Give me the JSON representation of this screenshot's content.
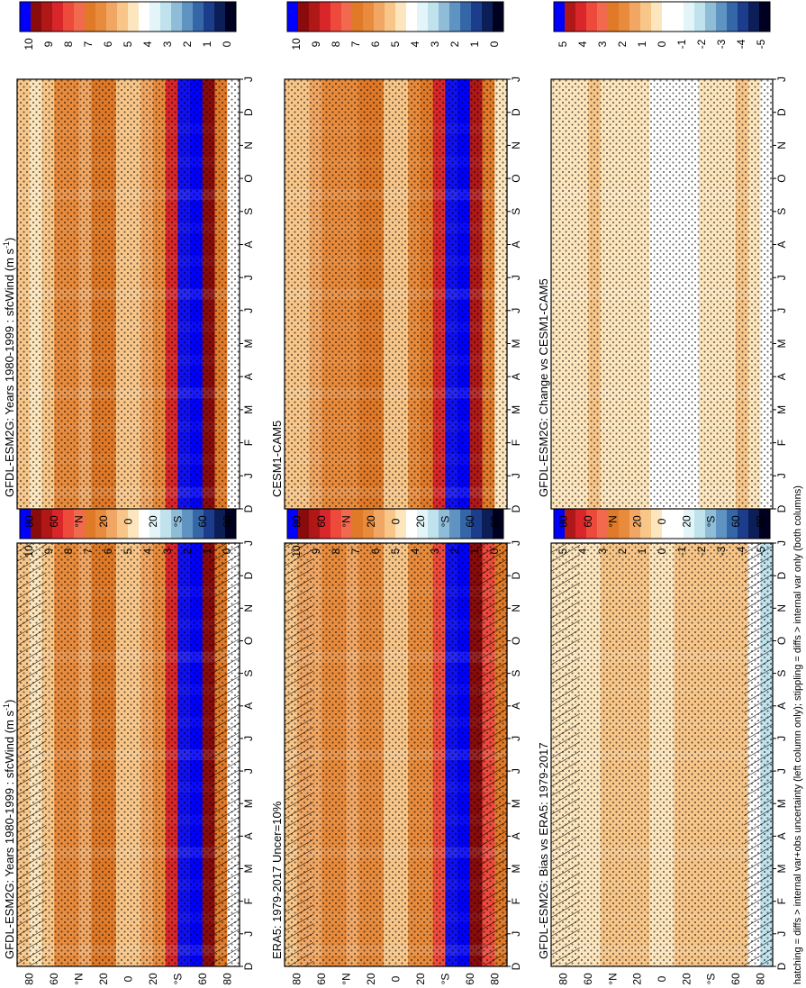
{
  "footer": "hatching = diffs > internal var+obs uncertainty (left column only); stippling = diffs > internal var only (both columns)",
  "colors": {
    "abs_palette": [
      "#000033",
      "#0d1f5c",
      "#1f3f8f",
      "#3f6faf",
      "#6f9fc8",
      "#a0cce0",
      "#c8e8f0",
      "#e8f8fa",
      "#ffffff",
      "#fde8c0",
      "#f9c98a",
      "#f0a860",
      "#e88a3a",
      "#e07020",
      "#f05050",
      "#e03030",
      "#c02020",
      "#901010",
      "#0000ff",
      "#0a2bff"
    ],
    "diff_palette": [
      "#000033",
      "#0d1f5c",
      "#1f3f8f",
      "#3f6faf",
      "#6f9fc8",
      "#a0cce0",
      "#c8e8f0",
      "#e8f8fa",
      "#ffffff",
      "#fde8c0",
      "#f9c98a",
      "#f0a860",
      "#e88a3a",
      "#e07020",
      "#f05050",
      "#e03030",
      "#c02020",
      "#901010",
      "#0000ff",
      "#0a2bff"
    ]
  },
  "panels": [
    {
      "id": "p1",
      "title": "GFDL-ESM2G: Years 1980-1999 : sfcWind (m s",
      "title_sup": "-1",
      "title_end": ")",
      "colorbar_ticks": [
        "10",
        "9",
        "8",
        "7",
        "6",
        "5",
        "4",
        "3",
        "2",
        "1",
        "0"
      ],
      "kind": "abs",
      "hatch": true
    },
    {
      "id": "p2",
      "title": "GFDL-ESM2G: Years 1980-1999 : sfcWind (m s",
      "title_sup": "-1",
      "title_end": ")",
      "colorbar_ticks": [
        "10",
        "9",
        "8",
        "7",
        "6",
        "5",
        "4",
        "3",
        "2",
        "1",
        "0"
      ],
      "kind": "abs",
      "hatch": false
    },
    {
      "id": "p3",
      "title": "ERA5: 1979-2017 Uncer=10%",
      "title_sup": "",
      "title_end": "",
      "colorbar_ticks": [
        "10",
        "9",
        "8",
        "7",
        "6",
        "5",
        "4",
        "3",
        "2",
        "1",
        "0"
      ],
      "kind": "abs",
      "hatch": true
    },
    {
      "id": "p4",
      "title": "CESM1-CAM5",
      "title_sup": "",
      "title_end": "",
      "colorbar_ticks": [
        "10",
        "9",
        "8",
        "7",
        "6",
        "5",
        "4",
        "3",
        "2",
        "1",
        "0"
      ],
      "kind": "abs",
      "hatch": false
    },
    {
      "id": "p5",
      "title": "GFDL-ESM2G: Bias vs ERA5: 1979-2017",
      "title_sup": "",
      "title_end": "",
      "colorbar_ticks": [
        "5",
        "4",
        "3",
        "2",
        "1",
        "0",
        "-1",
        "-2",
        "-3",
        "-4",
        "-5"
      ],
      "kind": "diff",
      "hatch": true
    },
    {
      "id": "p6",
      "title": "GFDL-ESM2G: Change vs CESM1-CAM5",
      "title_sup": "",
      "title_end": "",
      "colorbar_ticks": [
        "5",
        "4",
        "3",
        "2",
        "1",
        "0",
        "-1",
        "-2",
        "-3",
        "-4",
        "-5"
      ],
      "kind": "diff",
      "hatch": false
    }
  ],
  "chart_data": [
    {
      "type": "heatmap",
      "title": "GFDL-ESM2G: Years 1980-1999 : sfcWind (m s-1)",
      "x": [
        "D",
        "J",
        "F",
        "M",
        "A",
        "M",
        "J",
        "J",
        "A",
        "S",
        "O",
        "N",
        "D",
        "J"
      ],
      "y": [
        "80",
        "60",
        "°N",
        "20",
        "0",
        "20",
        "°S",
        "60",
        "80"
      ],
      "zlim": [
        0,
        10
      ],
      "zonal_profile_ms": {
        "lat": [
          -90,
          -80,
          -70,
          -60,
          -50,
          -40,
          -30,
          -20,
          -10,
          0,
          10,
          20,
          30,
          40,
          50,
          60,
          70,
          80,
          90
        ],
        "value": [
          3.5,
          5,
          8,
          10,
          10,
          9,
          7,
          5.5,
          6,
          4,
          6,
          7.5,
          5.5,
          6,
          6.5,
          6,
          4,
          5.5,
          5
        ]
      }
    },
    {
      "type": "heatmap",
      "title": "GFDL-ESM2G: Years 1980-1999 : sfcWind (m s-1)",
      "x": [
        "D",
        "J",
        "F",
        "M",
        "A",
        "M",
        "J",
        "J",
        "A",
        "S",
        "O",
        "N",
        "D",
        "J"
      ],
      "y": [
        "80",
        "60",
        "°N",
        "20",
        "0",
        "20",
        "°S",
        "60",
        "80"
      ],
      "zlim": [
        0,
        10
      ],
      "zonal_profile_ms": {
        "lat": [
          -90,
          -80,
          -70,
          -60,
          -50,
          -40,
          -30,
          -20,
          -10,
          0,
          10,
          20,
          30,
          40,
          50,
          60,
          70,
          80,
          90
        ],
        "value": [
          3.5,
          5,
          8,
          10,
          10,
          9,
          7,
          5.5,
          6,
          4,
          6,
          7.5,
          5.5,
          6,
          6.5,
          6,
          4,
          5.5,
          5
        ]
      }
    },
    {
      "type": "heatmap",
      "title": "ERA5: 1979-2017 Uncer=10%",
      "x": [
        "D",
        "J",
        "F",
        "M",
        "A",
        "M",
        "J",
        "J",
        "A",
        "S",
        "O",
        "N",
        "D",
        "J"
      ],
      "y": [
        "80",
        "60",
        "°N",
        "20",
        "0",
        "20",
        "°S",
        "60",
        "80"
      ],
      "zlim": [
        0,
        10
      ],
      "zonal_profile_ms": {
        "lat": [
          -90,
          -80,
          -70,
          -60,
          -50,
          -40,
          -30,
          -20,
          -10,
          0,
          10,
          20,
          30,
          40,
          50,
          60,
          70,
          80,
          90
        ],
        "value": [
          6,
          7,
          8,
          10,
          10,
          9,
          6.5,
          6,
          6,
          4.5,
          6,
          6.5,
          5.5,
          6,
          6.5,
          6,
          5.5,
          5.5,
          5
        ]
      }
    },
    {
      "type": "heatmap",
      "title": "CESM1-CAM5",
      "x": [
        "D",
        "J",
        "F",
        "M",
        "A",
        "M",
        "J",
        "J",
        "A",
        "S",
        "O",
        "N",
        "D",
        "J"
      ],
      "y": [
        "80",
        "60",
        "°N",
        "20",
        "0",
        "20",
        "°S",
        "60",
        "80"
      ],
      "zlim": [
        0,
        10
      ],
      "zonal_profile_ms": {
        "lat": [
          -90,
          -80,
          -70,
          -60,
          -50,
          -40,
          -30,
          -20,
          -10,
          0,
          10,
          20,
          30,
          40,
          50,
          60,
          70,
          80,
          90
        ],
        "value": [
          4,
          5.5,
          7.5,
          10,
          10,
          9,
          7,
          6,
          6,
          4.5,
          6,
          7,
          6,
          6,
          6.5,
          6,
          5,
          5.5,
          5
        ]
      }
    },
    {
      "type": "heatmap",
      "title": "GFDL-ESM2G: Bias vs ERA5: 1979-2017",
      "x": [
        "D",
        "J",
        "F",
        "M",
        "A",
        "M",
        "J",
        "J",
        "A",
        "S",
        "O",
        "N",
        "D",
        "J"
      ],
      "y": [
        "80",
        "60",
        "°N",
        "20",
        "0",
        "20",
        "°S",
        "60",
        "80"
      ],
      "zlim": [
        -5,
        5
      ],
      "zonal_profile_ms": {
        "lat": [
          -90,
          -80,
          -70,
          -60,
          -50,
          -40,
          -30,
          -20,
          -10,
          0,
          10,
          20,
          30,
          40,
          50,
          60,
          70,
          80,
          90
        ],
        "value": [
          -2,
          -1.5,
          0.5,
          0.5,
          0.5,
          0.5,
          0.5,
          0.5,
          0.5,
          0,
          0.5,
          1,
          0.5,
          0.5,
          0.5,
          0,
          0,
          0,
          0
        ]
      }
    },
    {
      "type": "heatmap",
      "title": "GFDL-ESM2G: Change vs CESM1-CAM5",
      "x": [
        "D",
        "J",
        "F",
        "M",
        "A",
        "M",
        "J",
        "J",
        "A",
        "S",
        "O",
        "N",
        "D",
        "J"
      ],
      "y": [
        "80",
        "60",
        "°N",
        "20",
        "0",
        "20",
        "°S",
        "60",
        "80"
      ],
      "zlim": [
        -5,
        5
      ],
      "zonal_profile_ms": {
        "lat": [
          -90,
          -80,
          -70,
          -60,
          -50,
          -40,
          -30,
          -20,
          -10,
          0,
          10,
          20,
          30,
          40,
          50,
          60,
          70,
          80,
          90
        ],
        "value": [
          -0.5,
          -0.5,
          0.5,
          0.5,
          0,
          0,
          0,
          -0.5,
          0,
          -0.5,
          0,
          0.5,
          0,
          0,
          0.5,
          0.5,
          0,
          0,
          0
        ]
      }
    }
  ]
}
